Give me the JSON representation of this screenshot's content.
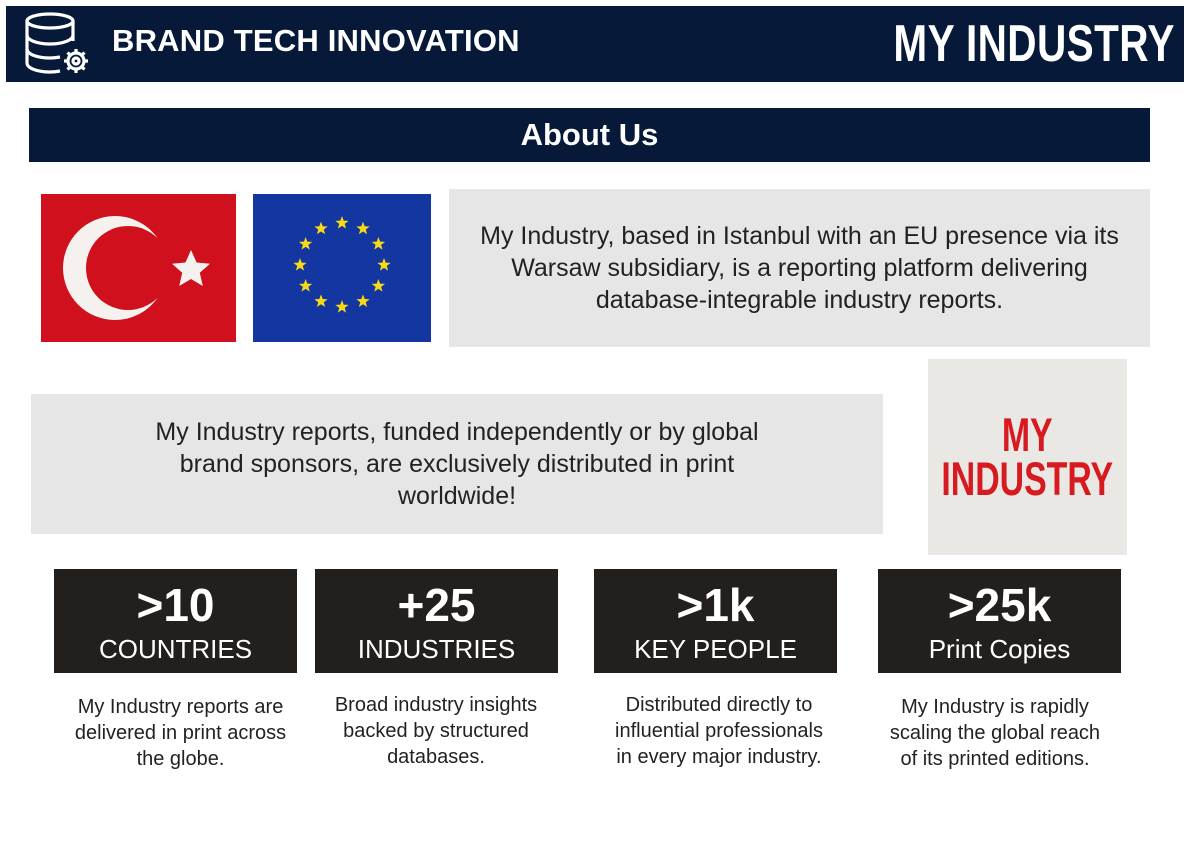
{
  "header": {
    "icon": "database-gear-icon",
    "brand_title": "BRAND TECH INNOVATION",
    "logo_text": "MY INDUSTRY",
    "background": "#061938"
  },
  "about": {
    "heading": "About Us",
    "flags": [
      "turkey-flag-icon",
      "eu-flag-icon"
    ],
    "intro": "My Industry, based in Istanbul with an EU presence via its Warsaw subsidiary, is a reporting platform delivering database-integrable industry reports.",
    "distribution": "My Industry reports, funded independently or by global brand sponsors, are exclusively distributed in print worldwide!",
    "logo_lines": [
      "MY",
      "INDUSTRY"
    ],
    "logo_color": "#d71a20"
  },
  "stats": [
    {
      "value": ">10",
      "label": "COUNTRIES",
      "description": "My Industry reports are delivered in print across the globe."
    },
    {
      "value": "+25",
      "label": "INDUSTRIES",
      "description": "Broad industry insights backed by structured databases."
    },
    {
      "value": ">1k",
      "label": "KEY PEOPLE",
      "description": "Distributed directly to influential professionals in every major industry."
    },
    {
      "value": ">25k",
      "label": "Print Copies",
      "description": "My Industry is rapidly scaling the global reach of its printed editions."
    }
  ]
}
